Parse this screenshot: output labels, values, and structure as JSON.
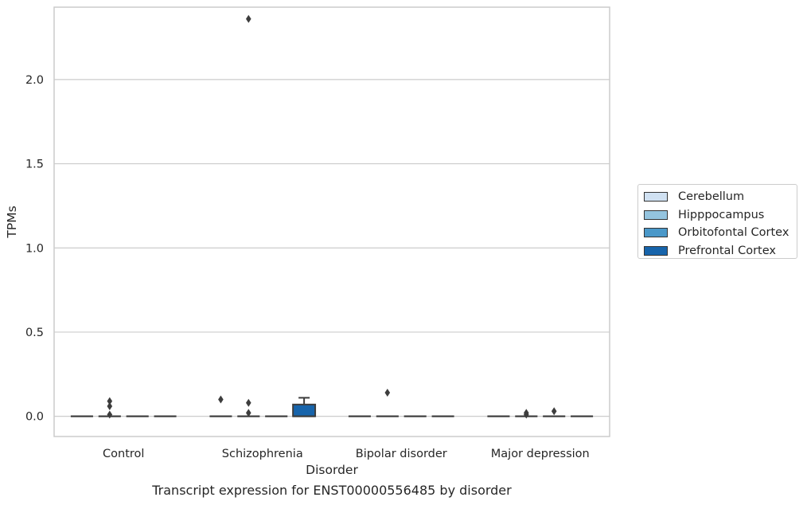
{
  "chart_data": {
    "type": "box",
    "xlabel": "Disorder",
    "ylabel": "TPMs",
    "caption": "Transcript expression for ENST00000556485 by disorder",
    "categories": [
      "Control",
      "Schizophrenia",
      "Bipolar disorder",
      "Major depression"
    ],
    "ylim": [
      -0.12,
      2.43
    ],
    "yticks": [
      0.0,
      0.5,
      1.0,
      1.5,
      2.0
    ],
    "ytick_labels": [
      "0.0",
      "0.5",
      "1.0",
      "1.5",
      "2.0"
    ],
    "grid": "horizontal",
    "legend_position": "right",
    "series": [
      {
        "name": "Cerebellum",
        "color": "#d0e1f2",
        "boxes": [
          {
            "category": "Control",
            "q1": 0,
            "median": 0,
            "q3": 0,
            "whisker_low": 0,
            "whisker_high": 0,
            "outliers": []
          },
          {
            "category": "Schizophrenia",
            "q1": 0,
            "median": 0,
            "q3": 0,
            "whisker_low": 0,
            "whisker_high": 0,
            "outliers": [
              0.1
            ]
          },
          {
            "category": "Bipolar disorder",
            "q1": 0,
            "median": 0,
            "q3": 0,
            "whisker_low": 0,
            "whisker_high": 0,
            "outliers": []
          },
          {
            "category": "Major depression",
            "q1": 0,
            "median": 0,
            "q3": 0,
            "whisker_low": 0,
            "whisker_high": 0,
            "outliers": []
          }
        ]
      },
      {
        "name": "Hipppocampus",
        "color": "#94c4df",
        "boxes": [
          {
            "category": "Control",
            "q1": 0,
            "median": 0,
            "q3": 0,
            "whisker_low": 0,
            "whisker_high": 0,
            "outliers": [
              0.01,
              0.06,
              0.09
            ]
          },
          {
            "category": "Schizophrenia",
            "q1": 0,
            "median": 0,
            "q3": 0,
            "whisker_low": 0,
            "whisker_high": 0,
            "outliers": [
              0.02,
              0.08,
              2.36
            ]
          },
          {
            "category": "Bipolar disorder",
            "q1": 0,
            "median": 0,
            "q3": 0,
            "whisker_low": 0,
            "whisker_high": 0,
            "outliers": [
              0.14
            ]
          },
          {
            "category": "Major depression",
            "q1": 0,
            "median": 0,
            "q3": 0,
            "whisker_low": 0,
            "whisker_high": 0,
            "outliers": [
              0.01,
              0.02
            ]
          }
        ]
      },
      {
        "name": "Orbitofontal Cortex",
        "color": "#4a98c9",
        "boxes": [
          {
            "category": "Control",
            "q1": 0,
            "median": 0,
            "q3": 0,
            "whisker_low": 0,
            "whisker_high": 0,
            "outliers": []
          },
          {
            "category": "Schizophrenia",
            "q1": 0,
            "median": 0,
            "q3": 0,
            "whisker_low": 0,
            "whisker_high": 0,
            "outliers": []
          },
          {
            "category": "Bipolar disorder",
            "q1": 0,
            "median": 0,
            "q3": 0,
            "whisker_low": 0,
            "whisker_high": 0,
            "outliers": []
          },
          {
            "category": "Major depression",
            "q1": 0,
            "median": 0,
            "q3": 0,
            "whisker_low": 0,
            "whisker_high": 0,
            "outliers": [
              0.03
            ]
          }
        ]
      },
      {
        "name": "Prefrontal Cortex",
        "color": "#1764ab",
        "boxes": [
          {
            "category": "Control",
            "q1": 0,
            "median": 0,
            "q3": 0,
            "whisker_low": 0,
            "whisker_high": 0,
            "outliers": []
          },
          {
            "category": "Schizophrenia",
            "q1": 0,
            "median": 0,
            "q3": 0.07,
            "whisker_low": 0,
            "whisker_high": 0.11,
            "outliers": []
          },
          {
            "category": "Bipolar disorder",
            "q1": 0,
            "median": 0,
            "q3": 0,
            "whisker_low": 0,
            "whisker_high": 0,
            "outliers": []
          },
          {
            "category": "Major depression",
            "q1": 0,
            "median": 0,
            "q3": 0,
            "whisker_low": 0,
            "whisker_high": 0,
            "outliers": []
          }
        ]
      }
    ]
  }
}
